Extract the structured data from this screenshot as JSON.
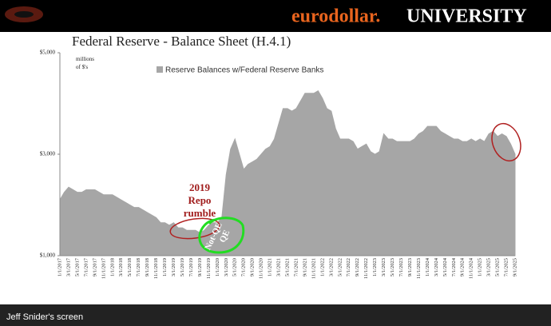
{
  "header": {
    "brand": "eurodollar.",
    "brand_suffix": "UNIVERSITY"
  },
  "footer": "Jeff Snider's screen",
  "chart_data": {
    "type": "area",
    "title": "Federal Reserve - Balance Sheet (H.4.1)",
    "y_label": [
      "millions",
      "of $'s"
    ],
    "categories": [
      "1/1/2017",
      null,
      "3/1/2017",
      null,
      "5/1/2017",
      null,
      "7/1/2017",
      null,
      "9/1/2017",
      null,
      "11/1/2017",
      null,
      "1/1/2018",
      null,
      "3/1/2018",
      null,
      "5/1/2018",
      null,
      "7/1/2018",
      null,
      "9/1/2018",
      null,
      "11/1/2018",
      null,
      "1/1/2019",
      null,
      "3/1/2019",
      null,
      "5/1/2019",
      null,
      "7/1/2019",
      null,
      "9/1/2019",
      null,
      "11/1/2019",
      null,
      "1/1/2020",
      null,
      "3/1/2020",
      null,
      "5/1/2020",
      null,
      "7/1/2020",
      null,
      "9/1/2020",
      null,
      "11/1/2020",
      null,
      "1/1/2021",
      null,
      "3/1/2021",
      null,
      "5/1/2021",
      null,
      "7/1/2021",
      null,
      "9/1/2021",
      null,
      "11/1/2021",
      null,
      "1/1/2022",
      null,
      "3/1/2022",
      null,
      "5/1/2022",
      null,
      "7/1/2022",
      null,
      "9/1/2022",
      null,
      "11/1/2022",
      null,
      "1/1/2023",
      null,
      "3/1/2023",
      null,
      "5/1/2023",
      null,
      "7/1/2023",
      null,
      "9/1/2023",
      null,
      "11/1/2023",
      null,
      "1/1/2024",
      null,
      "3/1/2024",
      null,
      "5/1/2024",
      null,
      "7/1/2024",
      null,
      "9/1/2024",
      null,
      "11/1/2024",
      null,
      "1/1/2025",
      null,
      "3/1/2025",
      null,
      "5/1/2025",
      null,
      "7/1/2025",
      null,
      "9/1/2025"
    ],
    "series": [
      {
        "name": "Reserve Balances w/Federal Reserve Banks",
        "color": "#a6a6a6",
        "values": [
          2100,
          2250,
          2350,
          2300,
          2250,
          2250,
          2300,
          2300,
          2300,
          2250,
          2200,
          2200,
          2200,
          2150,
          2100,
          2050,
          2000,
          1950,
          1950,
          1900,
          1850,
          1800,
          1750,
          1650,
          1650,
          1600,
          1650,
          1550,
          1550,
          1500,
          1500,
          1500,
          1450,
          1500,
          1600,
          1650,
          1650,
          1750,
          2600,
          3100,
          3300,
          3000,
          2700,
          2800,
          2850,
          2900,
          3000,
          3100,
          3150,
          3300,
          3600,
          3900,
          3900,
          3850,
          3900,
          4050,
          4200,
          4200,
          4200,
          4250,
          4100,
          3900,
          3850,
          3500,
          3300,
          3300,
          3300,
          3250,
          3100,
          3150,
          3200,
          3050,
          3000,
          3050,
          3400,
          3300,
          3300,
          3250,
          3250,
          3250,
          3250,
          3300,
          3400,
          3450,
          3550,
          3550,
          3550,
          3450,
          3400,
          3350,
          3300,
          3300,
          3250,
          3250,
          3300,
          3250,
          3300,
          3250,
          3400,
          3450,
          3350,
          3400,
          3350,
          3200,
          3000
        ]
      }
    ],
    "ylim": [
      1000,
      5000
    ],
    "yticks": [
      {
        "value": 1000,
        "label": "$1,000"
      },
      {
        "value": 3000,
        "label": "$3,000"
      },
      {
        "value": 5000,
        "label": "$5,000"
      }
    ],
    "annotations": {
      "repo": [
        "2019",
        "Repo",
        "rumble"
      ],
      "qe": [
        "Not-QE",
        "QE"
      ]
    }
  }
}
